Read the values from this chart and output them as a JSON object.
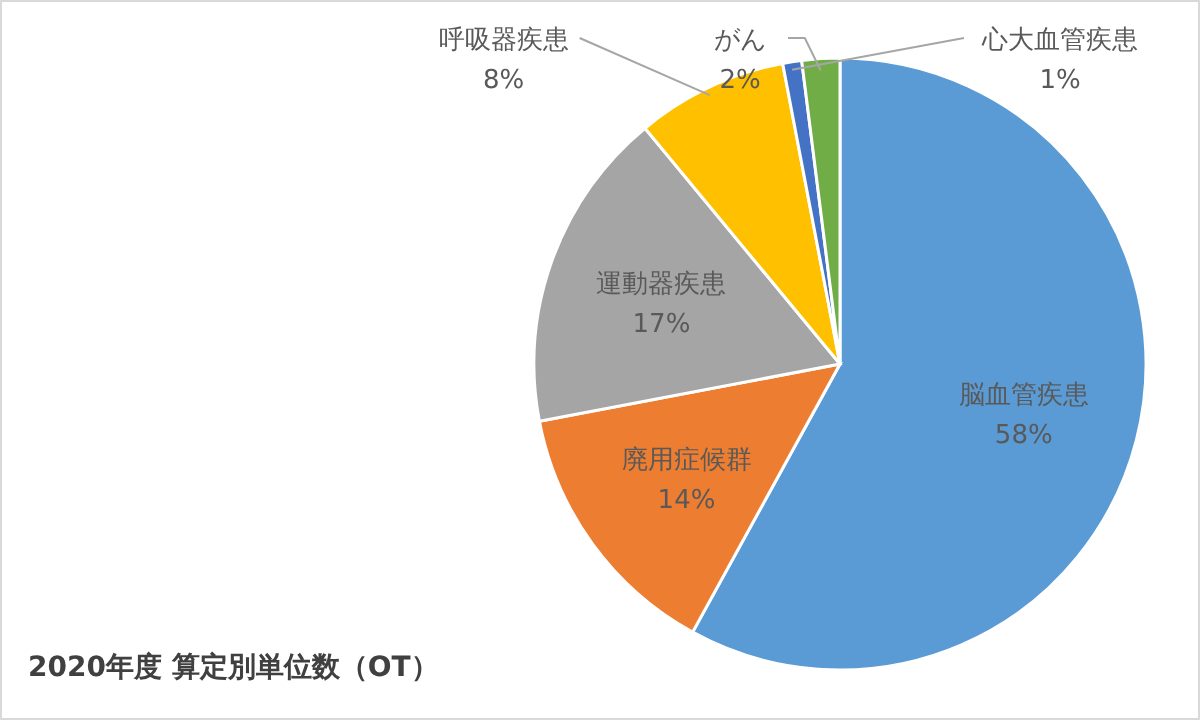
{
  "chart_data": {
    "type": "pie",
    "title": "2020年度 算定別単位数（OT）",
    "categories": [
      "脳血管疾患",
      "廃用症候群",
      "運動器疾患",
      "呼吸器疾患",
      "心大血管疾患",
      "がん"
    ],
    "values": [
      58,
      14,
      17,
      8,
      1,
      2
    ],
    "colors": [
      "#5b9bd5",
      "#ed7d31",
      "#a5a5a5",
      "#ffc000",
      "#4472c4",
      "#70ad47"
    ],
    "value_labels": [
      "58%",
      "14%",
      "17%",
      "8%",
      "1%",
      "2%"
    ],
    "legend": false
  }
}
